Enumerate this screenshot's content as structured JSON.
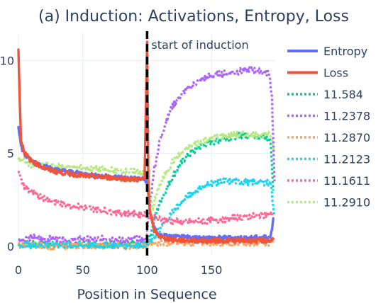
{
  "chart_data": {
    "type": "line",
    "title": "(a) Induction: Activations, Entropy, Loss",
    "xlabel": "Position in Sequence",
    "ylabel": "",
    "xlim": [
      0,
      199
    ],
    "ylim": [
      -0.5,
      11.5
    ],
    "x_ticks": [
      0,
      50,
      100,
      150
    ],
    "x_tick_labels": [
      "0",
      "50",
      "100",
      "150"
    ],
    "y_ticks": [
      0,
      5,
      10
    ],
    "y_tick_labels": [
      "0",
      "5",
      "10"
    ],
    "grid": true,
    "legend_position": "right",
    "annotation": {
      "text": "start of induction",
      "x": 100
    },
    "series": [
      {
        "name": "Entropy",
        "color": "#636efa",
        "style": "solid",
        "points": [
          [
            0,
            6.5
          ],
          [
            2,
            5.4
          ],
          [
            5,
            4.9
          ],
          [
            10,
            4.6
          ],
          [
            20,
            4.3
          ],
          [
            30,
            4.1
          ],
          [
            40,
            4.0
          ],
          [
            50,
            3.9
          ],
          [
            60,
            3.8
          ],
          [
            70,
            3.75
          ],
          [
            80,
            3.7
          ],
          [
            90,
            3.65
          ],
          [
            98,
            3.6
          ],
          [
            100,
            3.5
          ],
          [
            102,
            2.0
          ],
          [
            105,
            1.0
          ],
          [
            110,
            0.6
          ],
          [
            120,
            0.5
          ],
          [
            140,
            0.45
          ],
          [
            160,
            0.45
          ],
          [
            180,
            0.45
          ],
          [
            196,
            0.5
          ],
          [
            198,
            1.5
          ]
        ]
      },
      {
        "name": "Loss",
        "color": "#ef553b",
        "style": "solid",
        "points": [
          [
            0,
            10.5
          ],
          [
            1,
            8.0
          ],
          [
            2,
            5.7
          ],
          [
            5,
            5.0
          ],
          [
            10,
            4.6
          ],
          [
            20,
            4.2
          ],
          [
            30,
            4.0
          ],
          [
            40,
            3.9
          ],
          [
            50,
            3.8
          ],
          [
            60,
            3.75
          ],
          [
            70,
            3.7
          ],
          [
            80,
            3.65
          ],
          [
            90,
            3.6
          ],
          [
            98,
            3.6
          ],
          [
            100,
            11.0
          ],
          [
            101,
            3.3
          ],
          [
            102,
            2.0
          ],
          [
            105,
            0.9
          ],
          [
            110,
            0.5
          ],
          [
            120,
            0.35
          ],
          [
            140,
            0.3
          ],
          [
            160,
            0.3
          ],
          [
            180,
            0.3
          ],
          [
            196,
            0.3
          ],
          [
            198,
            0.4
          ]
        ]
      },
      {
        "name": "11.584",
        "color": "#00cc96",
        "style": "dotted",
        "points": [
          [
            0,
            0.1
          ],
          [
            20,
            0.12
          ],
          [
            50,
            0.1
          ],
          [
            80,
            0.12
          ],
          [
            99,
            0.12
          ],
          [
            102,
            0.5
          ],
          [
            105,
            1.3
          ],
          [
            110,
            2.4
          ],
          [
            120,
            3.8
          ],
          [
            130,
            4.8
          ],
          [
            140,
            5.3
          ],
          [
            150,
            5.6
          ],
          [
            160,
            5.8
          ],
          [
            170,
            5.95
          ],
          [
            180,
            6.0
          ],
          [
            190,
            5.9
          ],
          [
            196,
            5.7
          ],
          [
            198,
            3.0
          ]
        ]
      },
      {
        "name": "11.2378",
        "color": "#ab63fa",
        "style": "dotted",
        "points": [
          [
            0,
            0.3
          ],
          [
            10,
            0.5
          ],
          [
            20,
            0.35
          ],
          [
            30,
            0.45
          ],
          [
            40,
            0.3
          ],
          [
            50,
            0.4
          ],
          [
            60,
            0.35
          ],
          [
            70,
            0.45
          ],
          [
            80,
            0.3
          ],
          [
            90,
            0.4
          ],
          [
            99,
            0.3
          ],
          [
            102,
            2.0
          ],
          [
            105,
            4.0
          ],
          [
            110,
            5.7
          ],
          [
            115,
            6.8
          ],
          [
            120,
            7.6
          ],
          [
            130,
            8.4
          ],
          [
            140,
            8.9
          ],
          [
            150,
            9.2
          ],
          [
            160,
            9.3
          ],
          [
            170,
            9.4
          ],
          [
            180,
            9.5
          ],
          [
            190,
            9.4
          ],
          [
            195,
            9.3
          ],
          [
            197,
            8.0
          ],
          [
            199,
            3.5
          ]
        ]
      },
      {
        "name": "11.2870",
        "color": "#ffa15a",
        "style": "dotted",
        "points": [
          [
            0,
            0.05
          ],
          [
            30,
            0.0
          ],
          [
            60,
            0.05
          ],
          [
            99,
            0.0
          ],
          [
            100,
            0.1
          ],
          [
            110,
            0.2
          ],
          [
            140,
            0.2
          ],
          [
            170,
            0.2
          ],
          [
            198,
            0.2
          ]
        ]
      },
      {
        "name": "11.2123",
        "color": "#19d3f3",
        "style": "dotted",
        "points": [
          [
            0,
            0.05
          ],
          [
            30,
            0.08
          ],
          [
            60,
            0.05
          ],
          [
            99,
            0.05
          ],
          [
            102,
            0.2
          ],
          [
            105,
            0.5
          ],
          [
            110,
            0.9
          ],
          [
            115,
            1.4
          ],
          [
            120,
            1.9
          ],
          [
            130,
            2.6
          ],
          [
            140,
            3.1
          ],
          [
            150,
            3.4
          ],
          [
            160,
            3.5
          ],
          [
            170,
            3.5
          ],
          [
            180,
            3.45
          ],
          [
            190,
            3.45
          ],
          [
            196,
            3.4
          ],
          [
            199,
            1.6
          ]
        ]
      },
      {
        "name": "11.1611",
        "color": "#ff6692",
        "style": "dotted",
        "points": [
          [
            0,
            4.2
          ],
          [
            2,
            3.5
          ],
          [
            5,
            3.2
          ],
          [
            10,
            2.9
          ],
          [
            20,
            2.6
          ],
          [
            30,
            2.35
          ],
          [
            40,
            2.2
          ],
          [
            50,
            2.1
          ],
          [
            60,
            2.0
          ],
          [
            70,
            1.9
          ],
          [
            80,
            1.8
          ],
          [
            90,
            1.75
          ],
          [
            99,
            1.7
          ],
          [
            102,
            1.6
          ],
          [
            110,
            1.45
          ],
          [
            120,
            1.35
          ],
          [
            130,
            1.3
          ],
          [
            140,
            1.35
          ],
          [
            150,
            1.4
          ],
          [
            160,
            1.45
          ],
          [
            170,
            1.55
          ],
          [
            180,
            1.6
          ],
          [
            190,
            1.7
          ],
          [
            198,
            1.75
          ]
        ]
      },
      {
        "name": "11.2910",
        "color": "#b6e880",
        "style": "dotted",
        "points": [
          [
            0,
            4.7
          ],
          [
            5,
            4.55
          ],
          [
            10,
            4.4
          ],
          [
            20,
            4.35
          ],
          [
            30,
            4.3
          ],
          [
            40,
            4.25
          ],
          [
            50,
            4.2
          ],
          [
            60,
            4.15
          ],
          [
            70,
            4.1
          ],
          [
            80,
            4.05
          ],
          [
            90,
            4.0
          ],
          [
            99,
            4.0
          ],
          [
            102,
            3.0
          ],
          [
            104,
            2.0
          ],
          [
            106,
            2.5
          ],
          [
            110,
            3.3
          ],
          [
            115,
            4.0
          ],
          [
            120,
            4.6
          ],
          [
            130,
            5.2
          ],
          [
            140,
            5.6
          ],
          [
            150,
            5.8
          ],
          [
            160,
            5.95
          ],
          [
            170,
            6.0
          ],
          [
            180,
            6.0
          ],
          [
            190,
            6.0
          ],
          [
            196,
            6.0
          ],
          [
            199,
            5.2
          ]
        ]
      }
    ]
  }
}
